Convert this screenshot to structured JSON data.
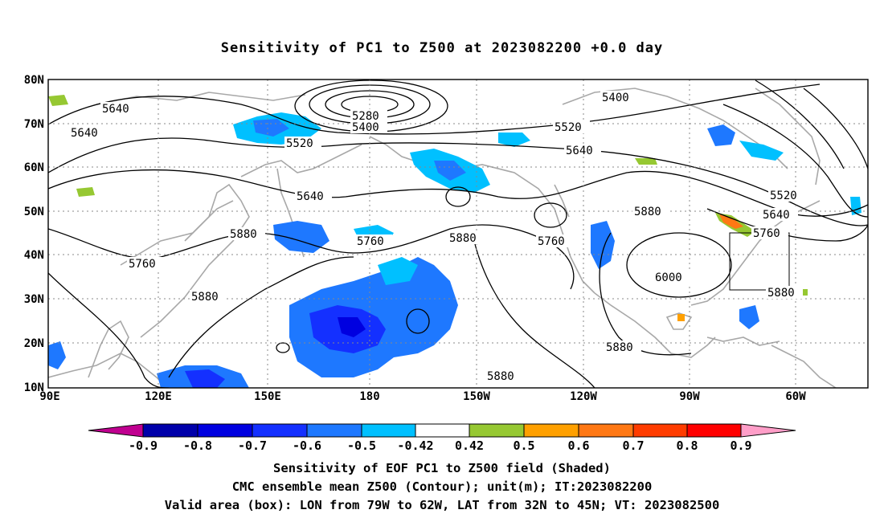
{
  "title": "Sensitivity of PC1 to Z500 at 2023082200 +0.0 day",
  "map": {
    "lon_labels": [
      "90E",
      "120E",
      "150E",
      "180",
      "150W",
      "120W",
      "90W",
      "60W"
    ],
    "lat_labels": [
      "80N",
      "70N",
      "60N",
      "50N",
      "40N",
      "30N",
      "20N",
      "10N"
    ],
    "contour_labels": [
      "5280",
      "5400",
      "5520",
      "5640",
      "5760",
      "5880",
      "6000"
    ],
    "valid_box": {
      "lon_from": "79W",
      "lon_to": "62W",
      "lat_from": "32N",
      "lat_to": "45N"
    }
  },
  "colorbar": {
    "labels": [
      "-0.9",
      "-0.8",
      "-0.7",
      "-0.6",
      "-0.5",
      "-0.42",
      "0.42",
      "0.5",
      "0.6",
      "0.7",
      "0.8",
      "0.9"
    ],
    "colors": [
      "#c00090",
      "#0000aa",
      "#0000e0",
      "#1430ff",
      "#1e78ff",
      "#00c0ff",
      "#ffffff",
      "#96c832",
      "#ffa000",
      "#ff7814",
      "#ff3c00",
      "#ff0000",
      "#ff9ec8"
    ]
  },
  "captions": {
    "line1": "Sensitivity of EOF PC1 to Z500 field (Shaded)",
    "line2": "CMC ensemble mean Z500 (Contour); unit(m); IT:2023082200",
    "line3": "Valid area (box): LON from 79W to 62W, LAT from 32N to 45N; VT: 2023082500"
  }
}
